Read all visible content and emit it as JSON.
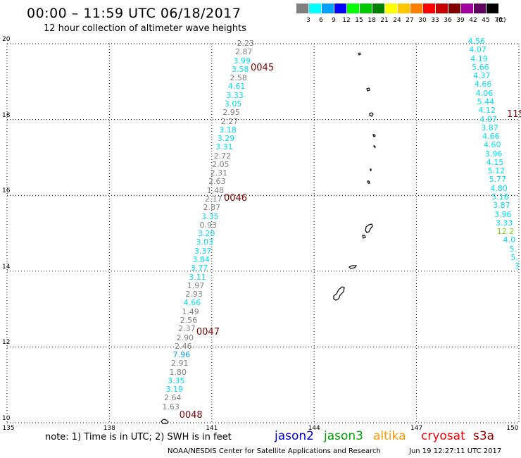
{
  "header": {
    "title": "00:00  –  11:59 UTC 06/18/2017",
    "subtitle": "12 hour collection of altimeter wave heights"
  },
  "legend": {
    "unit": "(ft)",
    "bins": [
      {
        "color": "#808080",
        "label": "3"
      },
      {
        "color": "#00ffff",
        "label": "6"
      },
      {
        "color": "#00a0ff",
        "label": "9"
      },
      {
        "color": "#0000ff",
        "label": "12"
      },
      {
        "color": "#00ff00",
        "label": "15"
      },
      {
        "color": "#00c800",
        "label": "18"
      },
      {
        "color": "#008000",
        "label": "21"
      },
      {
        "color": "#ffff00",
        "label": "24"
      },
      {
        "color": "#ffc800",
        "label": "27"
      },
      {
        "color": "#ff8000",
        "label": "30"
      },
      {
        "color": "#ff0000",
        "label": "33"
      },
      {
        "color": "#c80000",
        "label": "36"
      },
      {
        "color": "#800000",
        "label": "39"
      },
      {
        "color": "#a000a0",
        "label": "42"
      },
      {
        "color": "#600060",
        "label": "45"
      },
      {
        "color": "#000000",
        "label": "70"
      }
    ]
  },
  "map": {
    "lon_range": [
      135,
      150
    ],
    "lat_range": [
      10,
      20
    ],
    "lon_ticks": [
      "135",
      "138",
      "141",
      "144",
      "147",
      "150"
    ],
    "lat_ticks": [
      "20",
      "18",
      "16",
      "14",
      "12",
      "10"
    ],
    "track_a": {
      "heights": [
        {
          "v": "2.23",
          "c": "#808080"
        },
        {
          "v": "2.87",
          "c": "#808080"
        },
        {
          "v": "3.99",
          "c": "#00e0f0"
        },
        {
          "v": "3.58",
          "c": "#00e0f0"
        },
        {
          "v": "2.58",
          "c": "#808080"
        },
        {
          "v": "4.61",
          "c": "#00e0f0"
        },
        {
          "v": "3.33",
          "c": "#00e0f0"
        },
        {
          "v": "3.05",
          "c": "#00e0f0"
        },
        {
          "v": "2.95",
          "c": "#808080"
        },
        {
          "v": "2.27",
          "c": "#808080"
        },
        {
          "v": "3.18",
          "c": "#00e0f0"
        },
        {
          "v": "3.29",
          "c": "#00e0f0"
        },
        {
          "v": "3.31",
          "c": "#00e0f0"
        },
        {
          "v": "2.72",
          "c": "#808080"
        },
        {
          "v": "2.05",
          "c": "#808080"
        },
        {
          "v": "2.31",
          "c": "#808080"
        },
        {
          "v": "2.63",
          "c": "#808080"
        },
        {
          "v": "1.48",
          "c": "#808080"
        },
        {
          "v": "2.17",
          "c": "#808080"
        },
        {
          "v": "2.87",
          "c": "#808080"
        },
        {
          "v": "3.35",
          "c": "#00e0f0"
        },
        {
          "v": "0.93",
          "c": "#808080"
        },
        {
          "v": "3.20",
          "c": "#00e0f0"
        },
        {
          "v": "3.03",
          "c": "#00e0f0"
        },
        {
          "v": "3.37",
          "c": "#00e0f0"
        },
        {
          "v": "3.84",
          "c": "#00e0f0"
        },
        {
          "v": "3.77",
          "c": "#00e0f0"
        },
        {
          "v": "3.11",
          "c": "#00e0f0"
        },
        {
          "v": "1.97",
          "c": "#808080"
        },
        {
          "v": "2.93",
          "c": "#808080"
        },
        {
          "v": "4.66",
          "c": "#00e0f0"
        },
        {
          "v": "1.49",
          "c": "#808080"
        },
        {
          "v": "2.56",
          "c": "#808080"
        },
        {
          "v": "2.37",
          "c": "#808080"
        },
        {
          "v": "2.90",
          "c": "#808080"
        },
        {
          "v": "2.46",
          "c": "#808080"
        },
        {
          "v": "7.96",
          "c": "#00a0ff"
        },
        {
          "v": "2.91",
          "c": "#808080"
        },
        {
          "v": "1.80",
          "c": "#808080"
        },
        {
          "v": "3.35",
          "c": "#00e0f0"
        },
        {
          "v": "3.19",
          "c": "#00e0f0"
        },
        {
          "v": "2.64",
          "c": "#808080"
        },
        {
          "v": "1.63",
          "c": "#808080"
        }
      ],
      "times": [
        "0045",
        "0046",
        "0047",
        "0048"
      ]
    },
    "track_b": {
      "heights": [
        {
          "v": "4.56",
          "c": "#00e0f0"
        },
        {
          "v": "4.07",
          "c": "#00e0f0"
        },
        {
          "v": "4.19",
          "c": "#00e0f0"
        },
        {
          "v": "5.66",
          "c": "#00e0f0"
        },
        {
          "v": "4.37",
          "c": "#00e0f0"
        },
        {
          "v": "4.66",
          "c": "#00e0f0"
        },
        {
          "v": "4.06",
          "c": "#00e0f0"
        },
        {
          "v": "5.44",
          "c": "#00e0f0"
        },
        {
          "v": "4.12",
          "c": "#00e0f0"
        },
        {
          "v": "4.07",
          "c": "#00e0f0"
        },
        {
          "v": "3.87",
          "c": "#00e0f0"
        },
        {
          "v": "4.66",
          "c": "#00e0f0"
        },
        {
          "v": "4.60",
          "c": "#00e0f0"
        },
        {
          "v": "3.96",
          "c": "#00e0f0"
        },
        {
          "v": "4.15",
          "c": "#00e0f0"
        },
        {
          "v": "5.12",
          "c": "#00e0f0"
        },
        {
          "v": "5.77",
          "c": "#00e0f0"
        },
        {
          "v": "4.80",
          "c": "#00e0f0"
        },
        {
          "v": "5.16",
          "c": "#00e0f0"
        },
        {
          "v": "3.87",
          "c": "#00e0f0"
        },
        {
          "v": "3.96",
          "c": "#00e0f0"
        },
        {
          "v": "3.33",
          "c": "#00e0f0"
        },
        {
          "v": "12.2",
          "c": "#7ad61a"
        },
        {
          "v": "4.0",
          "c": "#00e0f0"
        },
        {
          "v": "5.",
          "c": "#00e0f0"
        },
        {
          "v": "5.",
          "c": "#00e0f0"
        },
        {
          "v": "3",
          "c": "#00e0f0"
        }
      ],
      "times": [
        "115"
      ]
    }
  },
  "footer": {
    "note": "note:  1) Time is in UTC;  2) SWH is in feet",
    "satellites": [
      {
        "name": "jason2",
        "color": "#0000dd"
      },
      {
        "name": "jason3",
        "color": "#00a000"
      },
      {
        "name": "altika",
        "color": "#ff9900"
      },
      {
        "name": "cryosat",
        "color": "#ff0000"
      },
      {
        "name": "s3a",
        "color": "#990000"
      }
    ],
    "credit": "NOAA/NESDIS Center for Satellite Applications and Research",
    "timestamp": "Jun 19 12:27:11 UTC 2017"
  }
}
